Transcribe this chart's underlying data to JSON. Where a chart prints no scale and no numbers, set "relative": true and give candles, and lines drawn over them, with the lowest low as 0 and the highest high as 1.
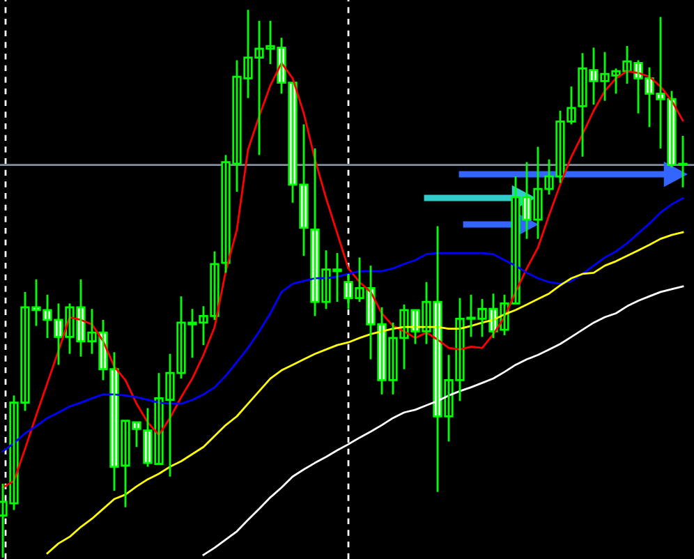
{
  "chart_data": {
    "type": "candlestick",
    "relative": true,
    "color": "#00ff00",
    "legend": false,
    "categories": [
      null,
      null,
      null,
      null,
      null,
      null,
      null,
      null,
      null,
      null,
      null,
      null,
      null,
      null,
      null,
      null,
      null,
      null,
      null,
      null,
      null,
      null,
      null,
      null,
      null,
      null,
      null,
      null,
      null,
      null,
      null,
      null,
      null,
      null,
      null,
      null,
      null,
      null,
      null,
      null,
      null,
      null,
      null,
      null,
      null,
      null,
      null,
      null,
      null,
      null,
      null,
      null,
      null,
      null,
      null,
      null,
      null,
      null,
      null,
      null,
      null,
      null
    ],
    "ohlc": [
      [
        0.077,
        0.135,
        0,
        0.102
      ],
      [
        0.099,
        0.296,
        0.087,
        0.283
      ],
      [
        0.283,
        0.485,
        0.268,
        0.457
      ],
      [
        0.457,
        0.508,
        0.423,
        0.452
      ],
      [
        0.452,
        0.48,
        0.401,
        0.434
      ],
      [
        0.434,
        0.464,
        0.352,
        0.403
      ],
      [
        0.403,
        0.464,
        0.372,
        0.457
      ],
      [
        0.457,
        0.508,
        0.367,
        0.395
      ],
      [
        0.395,
        0.454,
        0.372,
        0.411
      ],
      [
        0.411,
        0.434,
        0.324,
        0.344
      ],
      [
        0.344,
        0.375,
        0.122,
        0.166
      ],
      [
        0.168,
        0.25,
        0.092,
        0.25
      ],
      [
        0.247,
        0.247,
        0.202,
        0.235
      ],
      [
        0.232,
        0.273,
        0.166,
        0.173
      ],
      [
        0.171,
        0.337,
        0.171,
        0.291
      ],
      [
        0.288,
        0.372,
        0.148,
        0.337
      ],
      [
        0.337,
        0.477,
        0.327,
        0.429
      ],
      [
        0.426,
        0.454,
        0.365,
        0.429
      ],
      [
        0.429,
        0.459,
        0.388,
        0.441
      ],
      [
        0.441,
        0.559,
        0.434,
        0.536
      ],
      [
        0.538,
        0.735,
        0.52,
        0.722
      ],
      [
        0.719,
        0.908,
        0.668,
        0.878
      ],
      [
        0.875,
        1,
        0.839,
        0.913
      ],
      [
        0.913,
        0.98,
        0.735,
        0.929
      ],
      [
        0.929,
        0.98,
        0.901,
        0.934
      ],
      [
        0.931,
        0.949,
        0.847,
        0.867
      ],
      [
        0.867,
        0.867,
        0.648,
        0.681
      ],
      [
        0.681,
        0.791,
        0.551,
        0.602
      ],
      [
        0.599,
        0.747,
        0.441,
        0.467
      ],
      [
        0.467,
        0.561,
        0.454,
        0.526
      ],
      [
        0.523,
        0.556,
        0.467,
        0.526
      ],
      [
        0.503,
        0.518,
        0.454,
        0.474
      ],
      [
        0.474,
        0.548,
        0.467,
        0.492
      ],
      [
        0.492,
        0.533,
        0.362,
        0.426
      ],
      [
        0.426,
        0.457,
        0.298,
        0.324
      ],
      [
        0.324,
        0.429,
        0.298,
        0.401
      ],
      [
        0.401,
        0.462,
        0.344,
        0.452
      ],
      [
        0.452,
        0.452,
        0.39,
        0.413
      ],
      [
        0.413,
        0.503,
        0.39,
        0.467
      ],
      [
        0.467,
        0.605,
        0.12,
        0.258
      ],
      [
        0.258,
        0.37,
        0.212,
        0.324
      ],
      [
        0.324,
        0.474,
        0.286,
        0.436
      ],
      [
        0.436,
        0.48,
        0.403,
        0.436
      ],
      [
        0.436,
        0.472,
        0.403,
        0.454
      ],
      [
        0.454,
        0.482,
        0.401,
        0.413
      ],
      [
        0.416,
        0.48,
        0.406,
        0.464
      ],
      [
        0.464,
        0.696,
        0.464,
        0.658
      ],
      [
        0.658,
        0.722,
        0.582,
        0.617
      ],
      [
        0.617,
        0.75,
        0.582,
        0.673
      ],
      [
        0.673,
        0.727,
        0.663,
        0.696
      ],
      [
        0.696,
        0.816,
        0.684,
        0.796
      ],
      [
        0.796,
        0.86,
        0.791,
        0.821
      ],
      [
        0.824,
        0.921,
        0.732,
        0.893
      ],
      [
        0.89,
        0.931,
        0.827,
        0.87
      ],
      [
        0.87,
        0.923,
        0.834,
        0.883
      ],
      [
        0.88,
        0.893,
        0.847,
        0.888
      ],
      [
        0.888,
        0.934,
        0.865,
        0.906
      ],
      [
        0.903,
        0.908,
        0.811,
        0.875
      ],
      [
        0.875,
        0.895,
        0.786,
        0.847
      ],
      [
        0.847,
        0.987,
        0.747,
        0.837
      ],
      [
        0.837,
        0.852,
        0.712,
        0.717
      ],
      [
        0.717,
        0.77,
        0.676,
        0.717
      ]
    ],
    "series": [
      {
        "type": "line",
        "color": "#ff0000",
        "values": [
          0.128,
          0.14,
          0.199,
          0.26,
          0.319,
          0.378,
          0.439,
          0.434,
          0.426,
          0.395,
          0.349,
          0.324,
          0.281,
          0.247,
          0.224,
          0.255,
          0.293,
          0.327,
          0.37,
          0.421,
          0.523,
          0.599,
          0.745,
          0.806,
          0.862,
          0.903,
          0.875,
          0.811,
          0.727,
          0.656,
          0.592,
          0.528,
          0.503,
          0.485,
          0.446,
          0.423,
          0.413,
          0.401,
          0.411,
          0.398,
          0.383,
          0.38,
          0.385,
          0.383,
          0.408,
          0.439,
          0.485,
          0.528,
          0.566,
          0.625,
          0.681,
          0.732,
          0.773,
          0.816,
          0.852,
          0.875,
          0.888,
          0.885,
          0.878,
          0.86,
          0.834,
          0.798
        ]
      },
      {
        "type": "line",
        "color": "#0000ff",
        "values": [
          0.194,
          0.209,
          0.227,
          0.24,
          0.255,
          0.265,
          0.276,
          0.283,
          0.291,
          0.298,
          0.298,
          0.296,
          0.293,
          0.288,
          0.283,
          0.281,
          0.281,
          0.288,
          0.298,
          0.311,
          0.332,
          0.357,
          0.383,
          0.413,
          0.446,
          0.485,
          0.5,
          0.505,
          0.51,
          0.51,
          0.513,
          0.518,
          0.523,
          0.523,
          0.523,
          0.528,
          0.536,
          0.543,
          0.554,
          0.556,
          0.556,
          0.556,
          0.556,
          0.556,
          0.554,
          0.543,
          0.533,
          0.52,
          0.51,
          0.503,
          0.5,
          0.505,
          0.518,
          0.533,
          0.548,
          0.559,
          0.574,
          0.592,
          0.61,
          0.63,
          0.645,
          0.656
        ]
      },
      {
        "type": "line",
        "color": "#ffff00",
        "values": [
          null,
          null,
          null,
          null,
          0.008,
          0.026,
          0.038,
          0.056,
          0.071,
          0.089,
          0.107,
          0.115,
          0.13,
          0.143,
          0.153,
          0.166,
          0.176,
          0.189,
          0.202,
          0.222,
          0.242,
          0.258,
          0.281,
          0.304,
          0.327,
          0.342,
          0.352,
          0.362,
          0.372,
          0.38,
          0.388,
          0.393,
          0.401,
          0.408,
          0.413,
          0.418,
          0.421,
          0.421,
          0.421,
          0.421,
          0.418,
          0.418,
          0.423,
          0.429,
          0.434,
          0.444,
          0.452,
          0.462,
          0.472,
          0.482,
          0.497,
          0.51,
          0.518,
          0.52,
          0.533,
          0.541,
          0.551,
          0.561,
          0.571,
          0.582,
          0.589,
          0.594
        ]
      },
      {
        "type": "line",
        "color": "#ffffff",
        "values": [
          null,
          null,
          null,
          null,
          null,
          null,
          null,
          null,
          null,
          null,
          null,
          null,
          null,
          null,
          null,
          null,
          null,
          null,
          0.005,
          0.018,
          0.033,
          0.048,
          0.069,
          0.089,
          0.11,
          0.128,
          0.148,
          0.161,
          0.173,
          0.184,
          0.196,
          0.207,
          0.219,
          0.23,
          0.242,
          0.255,
          0.265,
          0.27,
          0.278,
          0.286,
          0.296,
          0.304,
          0.311,
          0.319,
          0.327,
          0.339,
          0.352,
          0.362,
          0.37,
          0.38,
          0.39,
          0.403,
          0.416,
          0.429,
          0.439,
          0.446,
          0.459,
          0.469,
          0.477,
          0.485,
          0.49,
          0.495
        ]
      }
    ],
    "ref_lines": [
      {
        "axis": "y",
        "value": 0.717,
        "color": "#8090a0"
      }
    ]
  }
}
